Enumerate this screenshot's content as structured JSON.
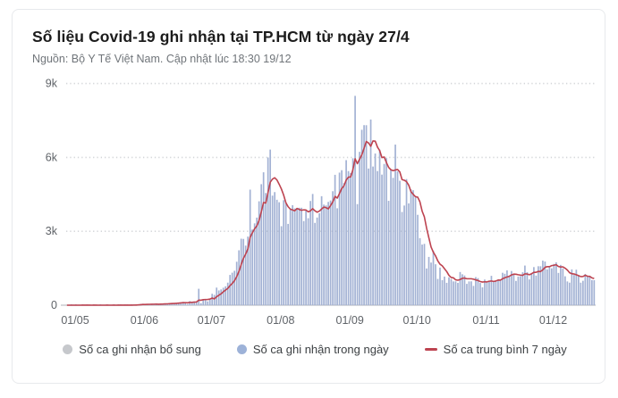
{
  "header": {
    "title": "Số liệu Covid-19 ghi nhận tại TP.HCM từ ngày 27/4",
    "source": "Nguồn: Bộ Y Tế Việt Nam. Cập nhật lúc 18:30 19/12"
  },
  "legend": {
    "items": [
      {
        "label": "Số ca ghi nhận bổ sung",
        "marker": "circle",
        "color": "#c6c8cc"
      },
      {
        "label": "Số ca ghi nhận trong ngày",
        "marker": "circle",
        "color": "#9db2d8"
      },
      {
        "label": "Số ca trung bình 7 ngày",
        "marker": "dash",
        "color": "#bd4350"
      }
    ]
  },
  "chart_data": {
    "type": "bar",
    "title": "Số liệu Covid-19 ghi nhận tại TP.HCM từ ngày 27/4",
    "date_range": {
      "start": "27/04",
      "end": "19/12"
    },
    "x_tick_labels": [
      "01/05",
      "01/06",
      "01/07",
      "01/08",
      "01/09",
      "01/10",
      "01/11",
      "01/12"
    ],
    "x_tick_day_index": [
      4,
      35,
      65,
      96,
      127,
      157,
      188,
      218
    ],
    "y_tick_labels": [
      "0",
      "3k",
      "6k",
      "9k"
    ],
    "ylim": [
      0,
      9000
    ],
    "grid": "dotted-horizontal",
    "legend_position": "bottom",
    "series": [
      {
        "name": "Số ca ghi nhận bổ sung",
        "type": "bar",
        "color": "#c6c8cc",
        "values": [],
        "note": "legend entry only; no gray bars visually distinguishable in chart"
      },
      {
        "name": "Số ca ghi nhận trong ngày",
        "type": "bar",
        "color": "#a3b2d4",
        "daily_from": "27/04",
        "values": [
          0,
          0,
          1,
          0,
          1,
          0,
          0,
          2,
          0,
          1,
          0,
          0,
          1,
          0,
          0,
          1,
          0,
          0,
          2,
          0,
          0,
          1,
          0,
          3,
          1,
          0,
          2,
          1,
          0,
          5,
          25,
          25,
          39,
          49,
          59,
          11,
          40,
          30,
          45,
          50,
          60,
          45,
          40,
          55,
          61,
          70,
          85,
          95,
          80,
          90,
          100,
          120,
          135,
          110,
          46,
          166,
          136,
          152,
          162,
          667,
          83,
          200,
          218,
          155,
          249,
          464,
          419,
          714,
          599,
          641,
          710,
          766,
          915,
          1229,
          1320,
          1397,
          1764,
          2229,
          2700,
          2691,
          2420,
          2786,
          4692,
          3074,
          3322,
          3556,
          4218,
          4913,
          5396,
          4555,
          5997,
          6318,
          4449,
          4592,
          4282,
          4180,
          3207,
          4264,
          4171,
          3300,
          3886,
          4060,
          3930,
          3898,
          3956,
          3956,
          3416,
          3841,
          3531,
          4231,
          4516,
          3341,
          3559,
          3731,
          4425,
          4084,
          4052,
          4193,
          4251,
          4627,
          5294,
          3934,
          5383,
          5481,
          4957,
          5889,
          5444,
          5368,
          5963,
          8499,
          4104,
          6226,
          7122,
          7310,
          7308,
          5549,
          7539,
          5629,
          6158,
          5446,
          6312,
          5301,
          5735,
          5972,
          4237,
          5496,
          5171,
          6521,
          5435,
          5052,
          3786,
          4046,
          5121,
          4134,
          4699,
          4669,
          4372,
          3670,
          2723,
          2461,
          2490,
          1491,
          1960,
          1730,
          2215,
          1662,
          1067,
          1527,
          1018,
          1162,
          909,
          1131,
          1064,
          966,
          968,
          907,
          1347,
          1255,
          1205,
          866,
          966,
          969,
          783,
          1140,
          1100,
          903,
          724,
          1041,
          927,
          985,
          1192,
          983,
          1010,
          1010,
          1009,
          1316,
          1276,
          1414,
          1185,
          1388,
          1240,
          985,
          1165,
          1183,
          1337,
          1609,
          1339,
          1046,
          1265,
          1547,
          1204,
          1582,
          1582,
          1809,
          1773,
          1454,
          1554,
          1497,
          1675,
          1738,
          1311,
          1636,
          1491,
          1174,
          965,
          915,
          1453,
          1226,
          1441,
          1216,
          915,
          991,
          1270,
          1175,
          1186,
          1019,
          1014
        ]
      },
      {
        "name": "Số ca trung bình 7 ngày",
        "type": "line",
        "color": "#bd4350",
        "derivation": "7-day trailing moving average of 'Số ca ghi nhận trong ngày'"
      }
    ]
  }
}
